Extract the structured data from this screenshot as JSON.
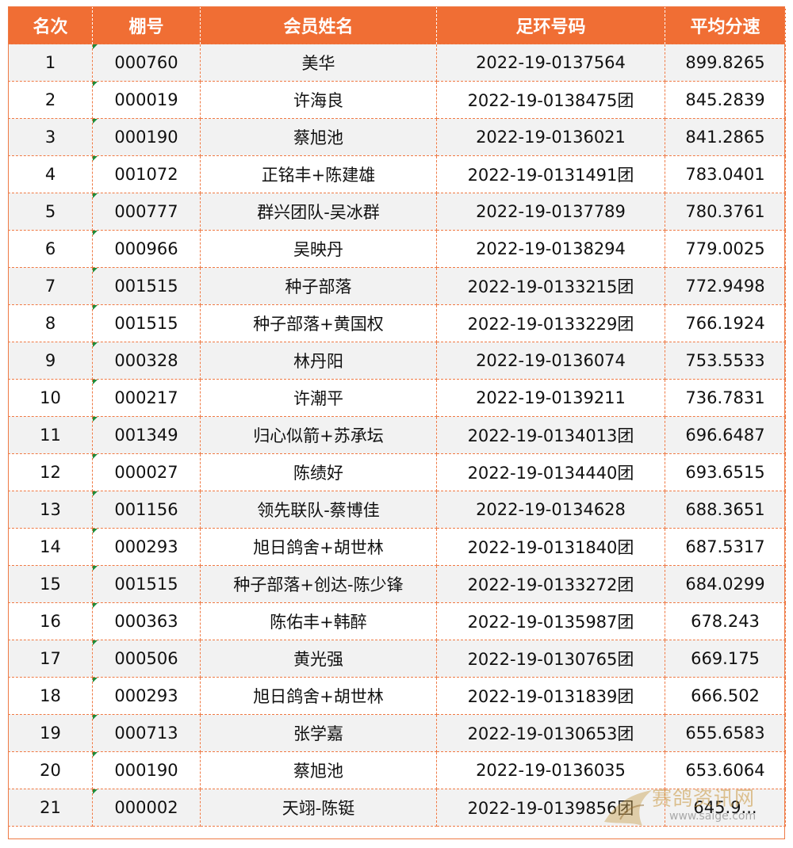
{
  "headers": [
    "名次",
    "棚号",
    "会员姓名",
    "足环号码",
    "平均分速"
  ],
  "rows": [
    [
      "1",
      "000760",
      "美华",
      "2022-19-0137564",
      "899.8265"
    ],
    [
      "2",
      "000019",
      "许海良",
      "2022-19-0138475团",
      "845.2839"
    ],
    [
      "3",
      "000190",
      "蔡旭池",
      "2022-19-0136021",
      "841.2865"
    ],
    [
      "4",
      "001072",
      "正铭丰+陈建雄",
      "2022-19-0131491团",
      "783.0401"
    ],
    [
      "5",
      "000777",
      "群兴团队-吴冰群",
      "2022-19-0137789",
      "780.3761"
    ],
    [
      "6",
      "000966",
      "吴映丹",
      "2022-19-0138294",
      "779.0025"
    ],
    [
      "7",
      "001515",
      "种子部落",
      "2022-19-0133215团",
      "772.9498"
    ],
    [
      "8",
      "001515",
      "种子部落+黄国权",
      "2022-19-0133229团",
      "766.1924"
    ],
    [
      "9",
      "000328",
      "林丹阳",
      "2022-19-0136074",
      "753.5533"
    ],
    [
      "10",
      "000217",
      "许潮平",
      "2022-19-0139211",
      "736.7831"
    ],
    [
      "11",
      "001349",
      "归心似箭+苏承坛",
      "2022-19-0134013团",
      "696.6487"
    ],
    [
      "12",
      "000027",
      "陈绩好",
      "2022-19-0134440团",
      "693.6515"
    ],
    [
      "13",
      "001156",
      "领先联队-蔡博佳",
      "2022-19-0134628",
      "688.3651"
    ],
    [
      "14",
      "000293",
      "旭日鸽舍+胡世林",
      "2022-19-0131840团",
      "687.5317"
    ],
    [
      "15",
      "001515",
      "种子部落+创达-陈少锋",
      "2022-19-0133272团",
      "684.0299"
    ],
    [
      "16",
      "000363",
      "陈佑丰+韩醉",
      "2022-19-0135987团",
      "678.243"
    ],
    [
      "17",
      "000506",
      "黄光强",
      "2022-19-0130765团",
      "669.175"
    ],
    [
      "18",
      "000293",
      "旭日鸽舍+胡世林",
      "2022-19-0131839团",
      "666.502"
    ],
    [
      "19",
      "000713",
      "张学嘉",
      "2022-19-0130653团",
      "655.6583"
    ],
    [
      "20",
      "000190",
      "蔡旭池",
      "2022-19-0136035",
      "653.6064"
    ],
    [
      "21",
      "000002",
      "天翊-陈铤",
      "2022-19-0139856团",
      "645.9..."
    ]
  ],
  "watermark": {
    "text": "赛鸽资讯网",
    "url": "www.saige.com"
  },
  "colors": {
    "header_bg": "#f06e34",
    "border": "#ef7a45",
    "stripe": "#f2f2f2",
    "marker": "#1f8b3a"
  }
}
